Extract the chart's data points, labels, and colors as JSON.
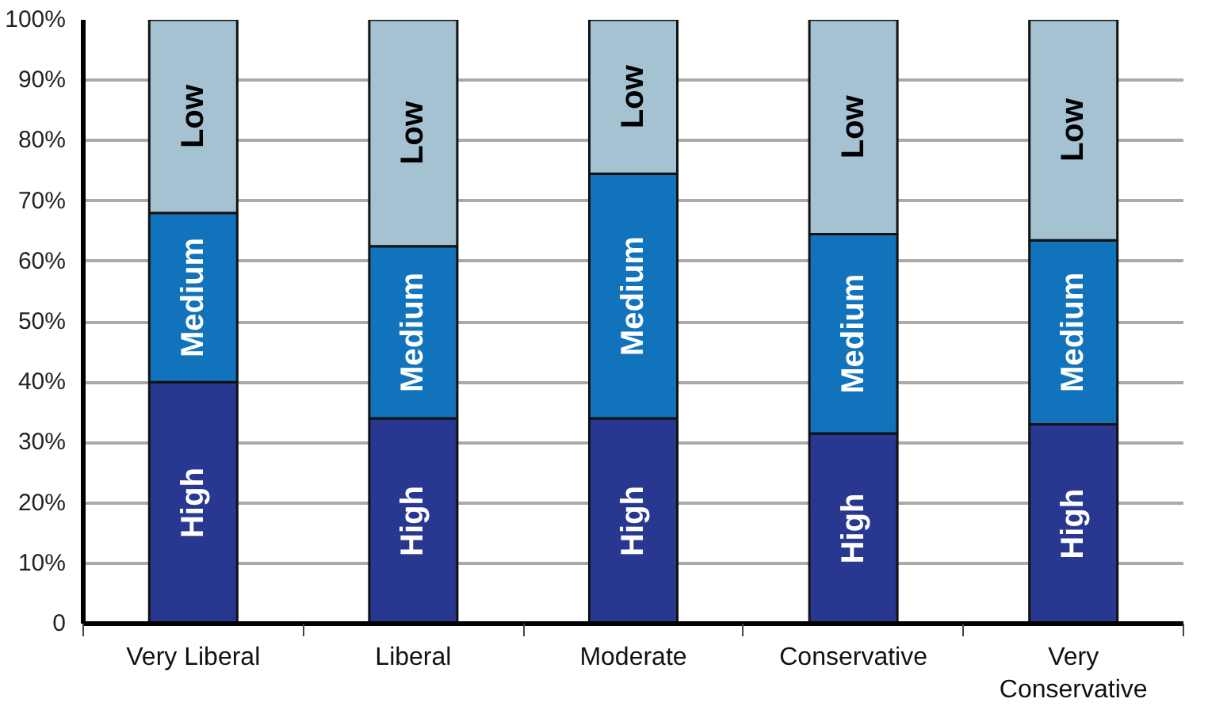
{
  "chart_data": {
    "type": "bar",
    "stacked": true,
    "categories": [
      "Very Liberal",
      "Liberal",
      "Moderate",
      "Conservative",
      "Very Conservative"
    ],
    "series": [
      {
        "name": "High",
        "color": "#283891",
        "values": [
          40,
          34,
          34,
          31.5,
          33
        ]
      },
      {
        "name": "Medium",
        "color": "#1173bb",
        "values": [
          28,
          28.5,
          40.5,
          33,
          30.5
        ]
      },
      {
        "name": "Low",
        "color": "#a4c2d2",
        "values": [
          32,
          37.5,
          25.5,
          35.5,
          36.5
        ]
      }
    ],
    "ylim": [
      0,
      100
    ],
    "yticks": [
      0,
      {
        "value": 10,
        "label": "10%"
      },
      {
        "value": 20,
        "label": "20%"
      },
      {
        "value": 30,
        "label": "30%"
      },
      {
        "value": 40,
        "label": "40%"
      },
      {
        "value": 50,
        "label": "50%"
      },
      {
        "value": 60,
        "label": "60%"
      },
      {
        "value": 70,
        "label": "70%"
      },
      {
        "value": 80,
        "label": "80%"
      },
      {
        "value": 90,
        "label": "90%"
      },
      {
        "value": 100,
        "label": "100%"
      }
    ],
    "grid": "y",
    "legend": false
  }
}
